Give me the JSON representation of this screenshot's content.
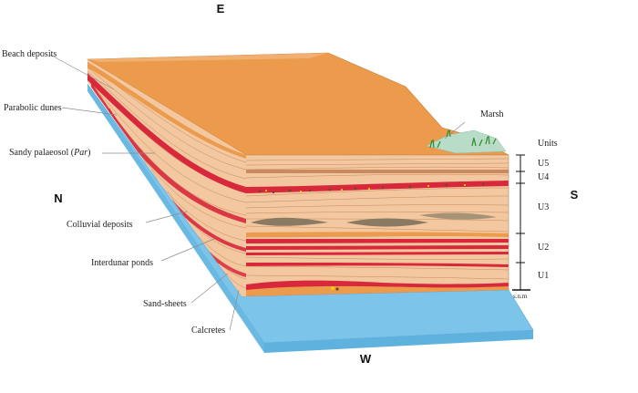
{
  "compass": {
    "east": "E",
    "west": "W",
    "north": "N",
    "south": "S"
  },
  "labels": {
    "beach_deposits": "Beach deposits",
    "parabolic_dunes": "Parabolic dunes",
    "sandy_palaeosol": "Sandy palaeosol (",
    "sandy_palaeosol_abbr": "Par",
    "sandy_palaeosol_close": ")",
    "colluvial_deposits": "Colluvial deposits",
    "interdunar_ponds": "Interdunar ponds",
    "sand_sheets": "Sand-sheets",
    "calcretes": "Calcretes",
    "marsh": "Marsh"
  },
  "units": {
    "title": "Units",
    "items": [
      "U5",
      "U4",
      "U3",
      "U2",
      "U1"
    ],
    "datum": "s.n.m"
  },
  "colors": {
    "top_surface": "#ec9a4b",
    "sand": "#f3c79f",
    "palaeosol": "#d8283c",
    "colluvial": "#f2d100",
    "sea": "#7cc4ea",
    "marsh": "#b8dcc8",
    "pond": "#8a7a62"
  }
}
